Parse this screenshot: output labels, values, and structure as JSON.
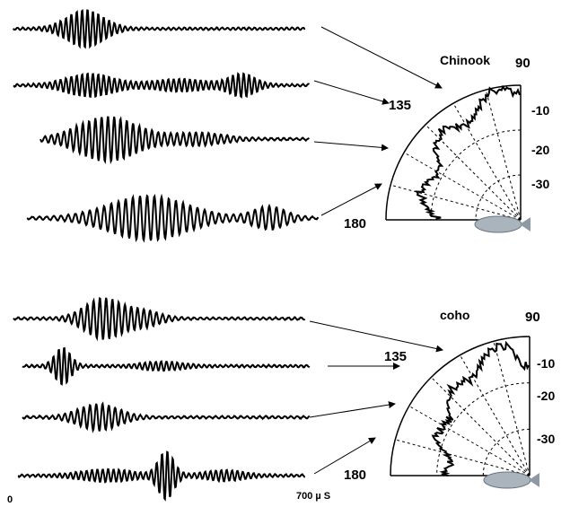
{
  "panels": [
    {
      "label": "Chinook",
      "angle_labels": [
        "90",
        "135",
        "180"
      ],
      "radial_labels": [
        "-10",
        "-20",
        "-30"
      ]
    },
    {
      "label": "coho",
      "angle_labels": [
        "90",
        "135",
        "180"
      ],
      "radial_labels": [
        "-10",
        "-20",
        "-30"
      ]
    }
  ],
  "time_axis": {
    "start": "0",
    "end": "700 µ S"
  }
}
